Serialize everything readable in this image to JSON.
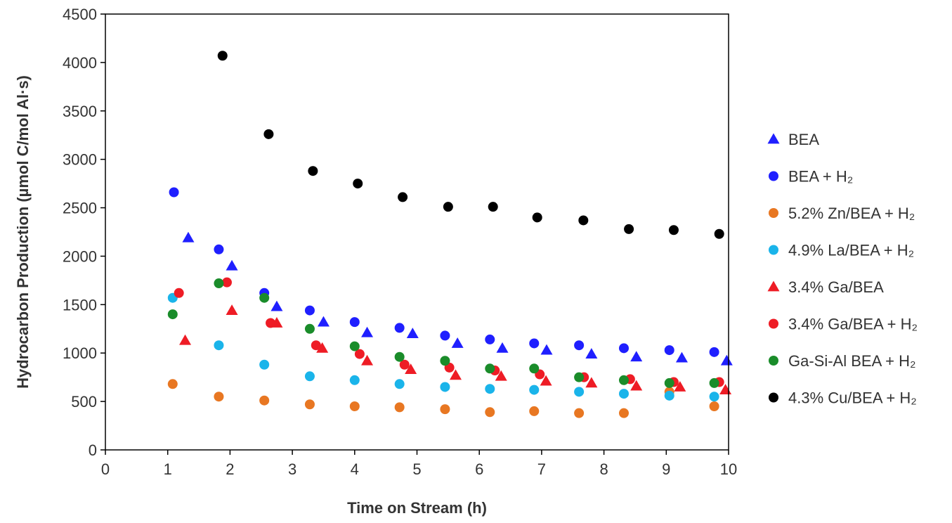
{
  "chart_data": {
    "type": "scatter",
    "title": "",
    "xlabel": "Time on Stream (h)",
    "ylabel": "Hydrocarbon Production (µmol C/mol Al·s)",
    "xlim": [
      0,
      10
    ],
    "ylim": [
      0,
      4500
    ],
    "xticks": [
      0,
      1,
      2,
      3,
      4,
      5,
      6,
      7,
      8,
      9,
      10
    ],
    "yticks": [
      0,
      500,
      1000,
      1500,
      2000,
      2500,
      3000,
      3500,
      4000,
      4500
    ],
    "grid": false,
    "legend_position": "right",
    "series": [
      {
        "name": "BEA",
        "marker": "triangle",
        "color": "#1f1fff",
        "x": [
          1.33,
          2.03,
          2.75,
          3.5,
          4.2,
          4.93,
          5.65,
          6.37,
          7.08,
          7.8,
          8.52,
          9.25,
          9.97
        ],
        "y": [
          2190,
          1900,
          1480,
          1320,
          1210,
          1200,
          1100,
          1050,
          1030,
          990,
          960,
          950,
          920
        ]
      },
      {
        "name": "BEA + H₂",
        "marker": "circle",
        "color": "#1f1fff",
        "x": [
          1.1,
          1.82,
          2.55,
          3.28,
          4.0,
          4.72,
          5.45,
          6.17,
          6.88,
          7.6,
          8.32,
          9.05,
          9.77
        ],
        "y": [
          2660,
          2070,
          1620,
          1440,
          1320,
          1260,
          1180,
          1140,
          1100,
          1080,
          1050,
          1030,
          1010
        ]
      },
      {
        "name": "5.2% Zn/BEA + H₂",
        "marker": "circle",
        "color": "#e87722",
        "x": [
          1.08,
          1.82,
          2.55,
          3.28,
          4.0,
          4.72,
          5.45,
          6.17,
          6.88,
          7.6,
          8.32,
          9.05,
          9.77
        ],
        "y": [
          680,
          550,
          510,
          470,
          450,
          440,
          420,
          390,
          400,
          380,
          380,
          600,
          450
        ]
      },
      {
        "name": "4.9% La/BEA + H₂",
        "marker": "circle",
        "color": "#1ab4ea",
        "x": [
          1.08,
          1.82,
          2.55,
          3.28,
          4.0,
          4.72,
          5.45,
          6.17,
          6.88,
          7.6,
          8.32,
          9.05,
          9.77
        ],
        "y": [
          1570,
          1080,
          880,
          760,
          720,
          680,
          650,
          630,
          620,
          600,
          580,
          560,
          550
        ]
      },
      {
        "name": "3.4% Ga/BEA",
        "marker": "triangle",
        "color": "#ee1c25",
        "x": [
          1.28,
          2.03,
          2.75,
          3.48,
          4.2,
          4.9,
          5.62,
          6.35,
          7.07,
          7.8,
          8.52,
          9.22,
          9.95
        ],
        "y": [
          1130,
          1440,
          1310,
          1050,
          920,
          830,
          770,
          760,
          710,
          690,
          660,
          650,
          620
        ]
      },
      {
        "name": "3.4% Ga/BEA + H₂",
        "marker": "circle",
        "color": "#ee1c25",
        "x": [
          1.18,
          1.95,
          2.65,
          3.38,
          4.08,
          4.8,
          5.52,
          6.25,
          6.97,
          7.68,
          8.42,
          9.12,
          9.85
        ],
        "y": [
          1620,
          1730,
          1310,
          1080,
          990,
          880,
          850,
          820,
          780,
          750,
          730,
          700,
          700
        ]
      },
      {
        "name": "Ga-Si-Al BEA + H₂",
        "marker": "circle",
        "color": "#1a8c2a",
        "x": [
          1.08,
          1.82,
          2.55,
          3.28,
          4.0,
          4.72,
          5.45,
          6.17,
          6.88,
          7.6,
          8.32,
          9.05,
          9.77
        ],
        "y": [
          1400,
          1720,
          1570,
          1250,
          1070,
          960,
          920,
          840,
          840,
          750,
          720,
          690,
          690
        ]
      },
      {
        "name": "4.3% Cu/BEA + H₂",
        "marker": "circle",
        "color": "#000000",
        "x": [
          1.88,
          2.62,
          3.33,
          4.05,
          4.77,
          5.5,
          6.22,
          6.93,
          7.67,
          8.4,
          9.12,
          9.85
        ],
        "y": [
          4070,
          3260,
          2880,
          2750,
          2610,
          2510,
          2510,
          2400,
          2370,
          2280,
          2270,
          2230
        ]
      }
    ]
  }
}
